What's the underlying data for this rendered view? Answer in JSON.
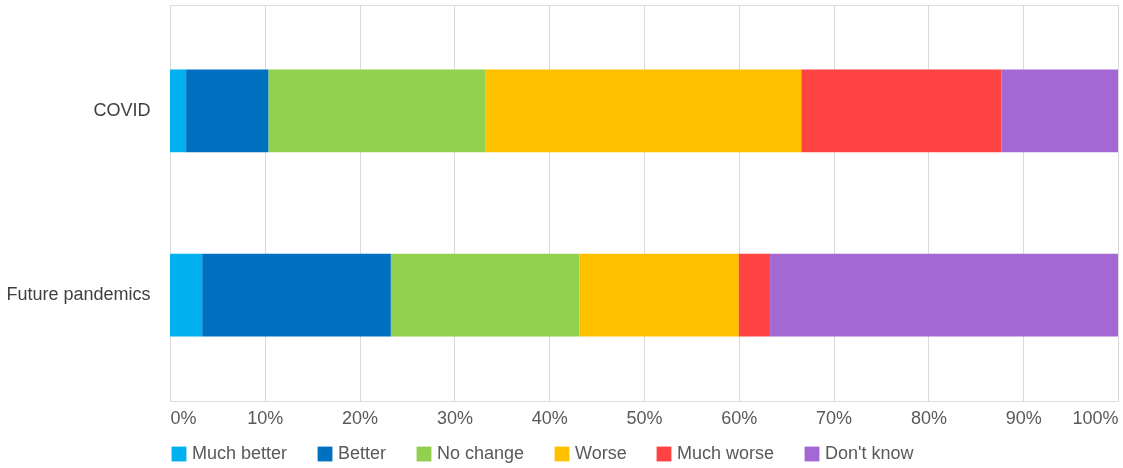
{
  "chart_data": {
    "type": "bar",
    "orientation": "horizontal",
    "stacked": true,
    "categories": [
      "COVID",
      "Future pandemics"
    ],
    "series": [
      {
        "name": "Much better",
        "color": "#00b0f0",
        "values": [
          1.7,
          3.4
        ]
      },
      {
        "name": "Better",
        "color": "#0070c0",
        "values": [
          8.7,
          19.9
        ]
      },
      {
        "name": "No change",
        "color": "#92d050",
        "values": [
          22.9,
          19.9
        ]
      },
      {
        "name": "Worse",
        "color": "#ffc000",
        "values": [
          33.3,
          16.8
        ]
      },
      {
        "name": "Much worse",
        "color": "#ff4343",
        "values": [
          21.1,
          3.3
        ]
      },
      {
        "name": "Don't know",
        "color": "#a368d3",
        "values": [
          12.3,
          36.7
        ]
      }
    ],
    "xlim": [
      0,
      100
    ],
    "xticks": [
      {
        "value": 0,
        "label": "0%"
      },
      {
        "value": 10,
        "label": "10%"
      },
      {
        "value": 20,
        "label": "20%"
      },
      {
        "value": 30,
        "label": "30%"
      },
      {
        "value": 40,
        "label": "40%"
      },
      {
        "value": 50,
        "label": "50%"
      },
      {
        "value": 60,
        "label": "60%"
      },
      {
        "value": 70,
        "label": "70%"
      },
      {
        "value": 80,
        "label": "80%"
      },
      {
        "value": 90,
        "label": "90%"
      },
      {
        "value": 100,
        "label": "100%"
      }
    ],
    "grid": "x",
    "legend": "bottom"
  }
}
